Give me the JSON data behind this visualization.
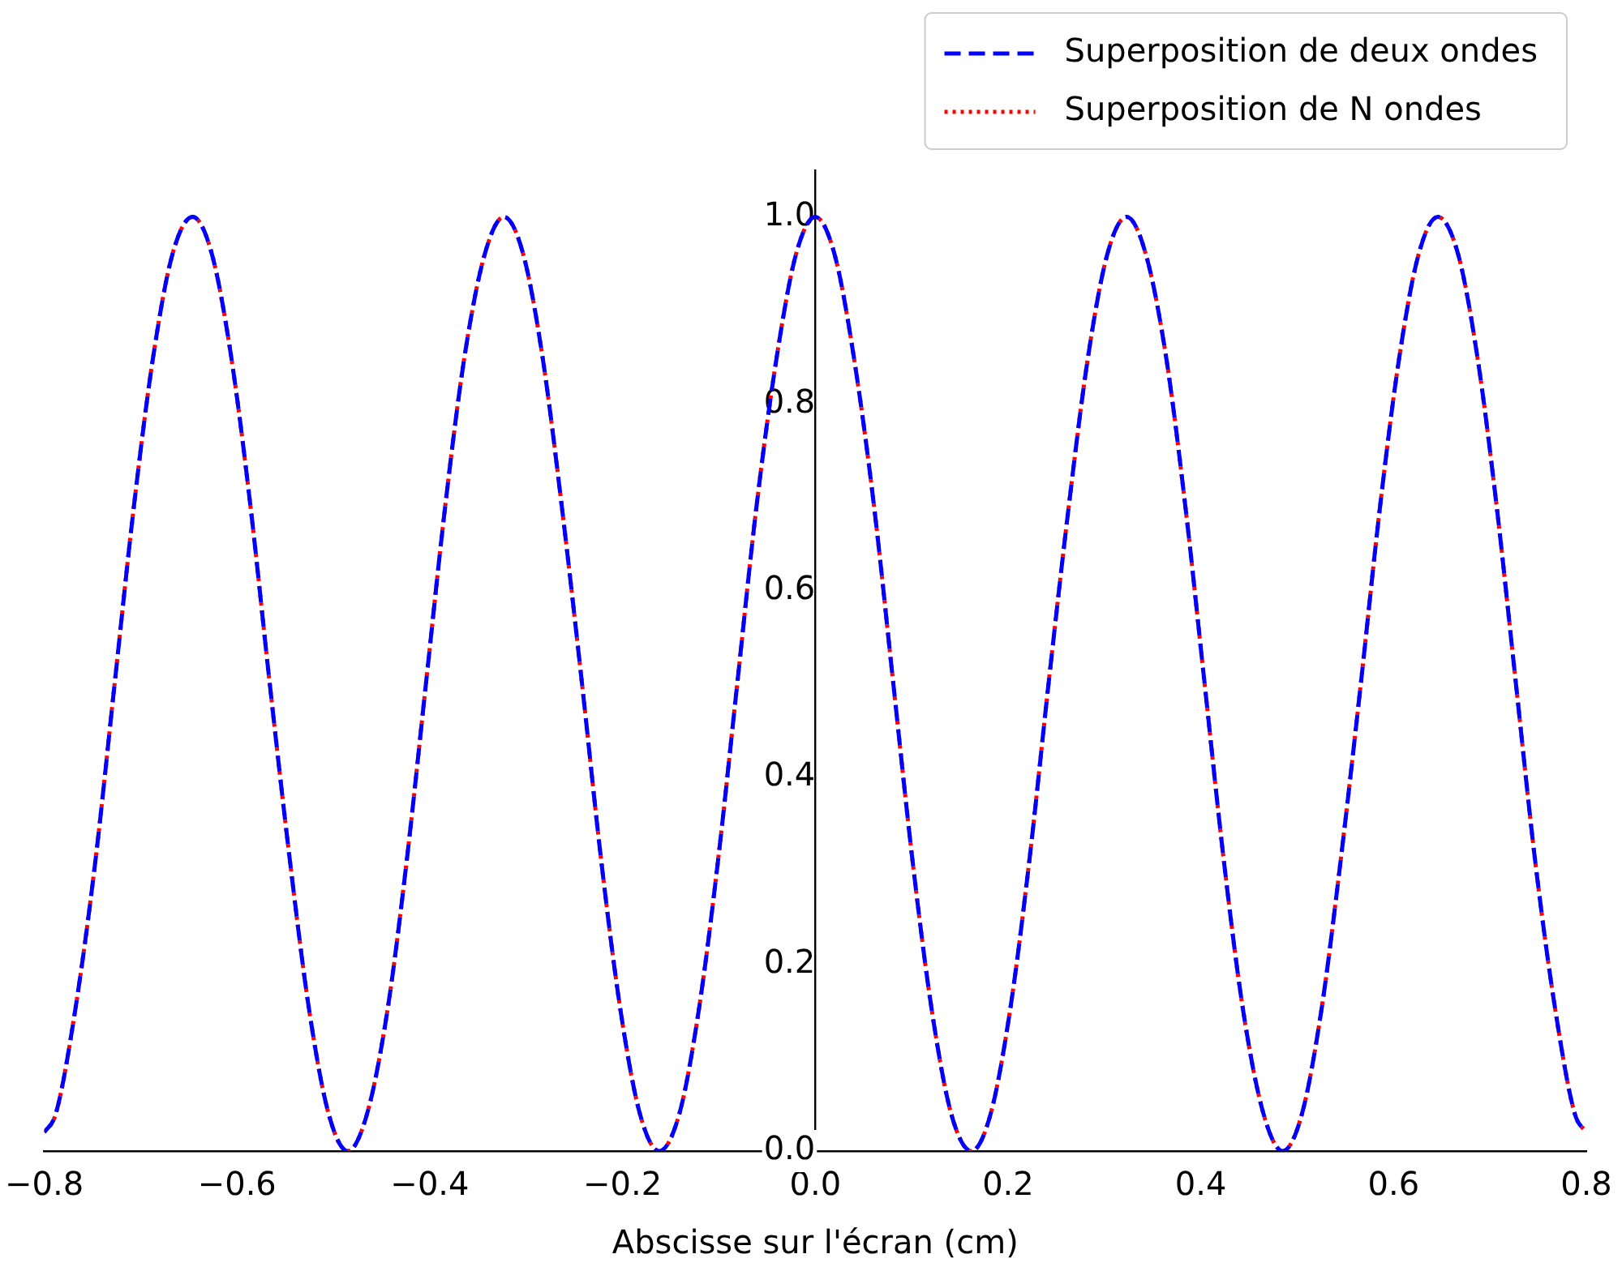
{
  "chart_data": {
    "type": "line",
    "xlabel": "Abscisse sur l'écran (cm)",
    "x": [
      -0.8,
      -0.788,
      -0.768,
      -0.747,
      -0.727,
      -0.707,
      -0.687,
      -0.667,
      -0.646,
      -0.626,
      -0.606,
      -0.586,
      -0.566,
      -0.545,
      -0.525,
      -0.505,
      -0.485,
      -0.465,
      -0.444,
      -0.424,
      -0.404,
      -0.384,
      -0.364,
      -0.343,
      -0.323,
      -0.303,
      -0.283,
      -0.263,
      -0.242,
      -0.222,
      -0.202,
      -0.182,
      -0.162,
      -0.141,
      -0.121,
      -0.101,
      -0.081,
      -0.061,
      -0.04,
      -0.02,
      0,
      0.02,
      0.04,
      0.061,
      0.081,
      0.101,
      0.121,
      0.141,
      0.162,
      0.182,
      0.202,
      0.222,
      0.242,
      0.263,
      0.283,
      0.303,
      0.323,
      0.343,
      0.364,
      0.384,
      0.404,
      0.424,
      0.444,
      0.465,
      0.485,
      0.505,
      0.525,
      0.545,
      0.566,
      0.586,
      0.606,
      0.626,
      0.646,
      0.667,
      0.687,
      0.707,
      0.727,
      0.747,
      0.768,
      0.788,
      0.8
    ],
    "series": [
      {
        "name": "Superposition de deux ondes",
        "color": "#0000ff",
        "line_style": "dashed",
        "values": [
          0.02,
          0.04,
          0.15,
          0.31,
          0.5,
          0.69,
          0.85,
          0.96,
          1,
          0.96,
          0.85,
          0.69,
          0.5,
          0.31,
          0.15,
          0.04,
          0,
          0.04,
          0.15,
          0.31,
          0.5,
          0.69,
          0.85,
          0.96,
          1,
          0.96,
          0.85,
          0.69,
          0.5,
          0.31,
          0.15,
          0.04,
          0,
          0.04,
          0.15,
          0.31,
          0.5,
          0.69,
          0.85,
          0.96,
          1,
          0.96,
          0.85,
          0.69,
          0.5,
          0.31,
          0.15,
          0.04,
          0,
          0.04,
          0.15,
          0.31,
          0.5,
          0.69,
          0.85,
          0.96,
          1,
          0.96,
          0.85,
          0.69,
          0.5,
          0.31,
          0.15,
          0.04,
          0,
          0.04,
          0.15,
          0.31,
          0.5,
          0.69,
          0.85,
          0.96,
          1,
          0.96,
          0.85,
          0.69,
          0.5,
          0.31,
          0.15,
          0.04,
          0.02
        ]
      },
      {
        "name": "Superposition de N ondes",
        "color": "#ff0000",
        "line_style": "dotted",
        "values": [
          0.02,
          0.04,
          0.15,
          0.31,
          0.5,
          0.69,
          0.85,
          0.96,
          1,
          0.96,
          0.85,
          0.69,
          0.5,
          0.31,
          0.15,
          0.04,
          0,
          0.04,
          0.15,
          0.31,
          0.5,
          0.69,
          0.85,
          0.96,
          1,
          0.96,
          0.85,
          0.69,
          0.5,
          0.31,
          0.15,
          0.04,
          0,
          0.04,
          0.15,
          0.31,
          0.5,
          0.69,
          0.85,
          0.96,
          1,
          0.96,
          0.85,
          0.69,
          0.5,
          0.31,
          0.15,
          0.04,
          0,
          0.04,
          0.15,
          0.31,
          0.5,
          0.69,
          0.85,
          0.96,
          1,
          0.96,
          0.85,
          0.69,
          0.5,
          0.31,
          0.15,
          0.04,
          0,
          0.04,
          0.15,
          0.31,
          0.5,
          0.69,
          0.85,
          0.96,
          1,
          0.96,
          0.85,
          0.69,
          0.5,
          0.31,
          0.15,
          0.04,
          0.02
        ]
      }
    ],
    "xlim": [
      -0.8,
      0.8
    ],
    "xticks": [
      {
        "value": -0.8,
        "label": "−0.8"
      },
      {
        "value": -0.6,
        "label": "−0.6"
      },
      {
        "value": -0.4,
        "label": "−0.4"
      },
      {
        "value": -0.2,
        "label": "−0.2"
      },
      {
        "value": 0,
        "label": "0.0"
      },
      0.2,
      0.4,
      0.6,
      0.8
    ],
    "ylim": [
      0,
      1.05
    ],
    "yticks": [
      {
        "value": 0,
        "label": "0.0"
      },
      0.2,
      0.4,
      0.6,
      0.8,
      {
        "value": 1,
        "label": "1.0"
      }
    ],
    "grid": false,
    "legend": "top right",
    "marker": "none"
  }
}
